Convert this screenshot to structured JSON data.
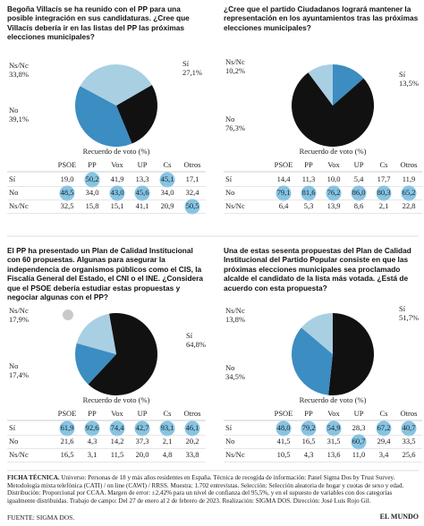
{
  "chart_data": [
    {
      "type": "pie",
      "title": "Begoña Villacís se ha reunido con el PP para una posible integración en sus candidaturas. ¿Cree que Villacís debería ir en las listas del PP las próximas elecciones municipales?",
      "categories": [
        "Sí",
        "No",
        "Ns/Nc"
      ],
      "values": [
        27.1,
        39.1,
        33.8
      ],
      "value_labels": [
        "27,1%",
        "39,1%",
        "33,8%"
      ],
      "colors": [
        "#111111",
        "#3b8dc2",
        "#a9cfe2"
      ]
    },
    {
      "type": "pie",
      "title": "¿Cree que el partido Ciudadanos logrará mantener la representación en los ayuntamientos tras las próximas elecciones municipales?",
      "categories": [
        "Sí",
        "No",
        "Ns/Nc"
      ],
      "values": [
        13.5,
        76.3,
        10.2
      ],
      "value_labels": [
        "13,5%",
        "76,3%",
        "10,2%"
      ],
      "colors": [
        "#3b8dc2",
        "#111111",
        "#a9cfe2"
      ]
    },
    {
      "type": "pie",
      "title": "El PP ha presentado un Plan de Calidad Institucional con 60 propuestas. Algunas para asegurar la independencia de organismos públicos como el CIS, la Fiscalía General del Estado, el CNI o el INE. ¿Considera que el PSOE debería estudiar estas propuestas y negociar algunas con el PP?",
      "categories": [
        "Sí",
        "No",
        "Ns/Nc"
      ],
      "values": [
        64.8,
        17.4,
        17.9
      ],
      "value_labels": [
        "64,8%",
        "17,4%",
        "17,9%"
      ],
      "colors": [
        "#111111",
        "#3b8dc2",
        "#a9cfe2"
      ]
    },
    {
      "type": "pie",
      "title": "Una de estas sesenta propuestas del Plan de Calidad Institucional del Partido Popular consiste en que las próximas elecciones municipales sea proclamado alcalde el candidato de la lista más votada. ¿Está de acuerdo con esta propuesta?",
      "categories": [
        "Sí",
        "No",
        "Ns/Nc"
      ],
      "values": [
        51.7,
        34.5,
        13.8
      ],
      "value_labels": [
        "51,7%",
        "34,5%",
        "13,8%"
      ],
      "colors": [
        "#111111",
        "#3b8dc2",
        "#a9cfe2"
      ]
    }
  ],
  "tables": [
    {
      "caption": "Recuerdo de voto (%)",
      "columns": [
        "PSOE",
        "PP",
        "Vox",
        "UP",
        "Cs",
        "Otros"
      ],
      "rows": [
        {
          "label": "Sí",
          "cells": [
            "19,0",
            "50,2",
            "41,9",
            "13,3",
            "45,1",
            "17,1"
          ],
          "highlight": [
            false,
            true,
            false,
            false,
            true,
            false
          ]
        },
        {
          "label": "No",
          "cells": [
            "48,5",
            "34,0",
            "43,0",
            "45,6",
            "34,0",
            "32,4"
          ],
          "highlight": [
            true,
            false,
            true,
            true,
            false,
            false
          ]
        },
        {
          "label": "Ns/Nc",
          "cells": [
            "32,5",
            "15,8",
            "15,1",
            "41,1",
            "20,9",
            "50,5"
          ],
          "highlight": [
            false,
            false,
            false,
            false,
            false,
            true
          ]
        }
      ]
    },
    {
      "caption": "Recuerdo de voto (%)",
      "columns": [
        "PSOE",
        "PP",
        "Vox",
        "UP",
        "Cs",
        "Otros"
      ],
      "rows": [
        {
          "label": "Sí",
          "cells": [
            "14,4",
            "11,3",
            "10,0",
            "5,4",
            "17,7",
            "11,9"
          ],
          "highlight": [
            false,
            false,
            false,
            false,
            false,
            false
          ]
        },
        {
          "label": "No",
          "cells": [
            "79,1",
            "81,6",
            "76,2",
            "86,0",
            "80,3",
            "65,2"
          ],
          "highlight": [
            true,
            true,
            true,
            true,
            true,
            true
          ]
        },
        {
          "label": "Ns/Nc",
          "cells": [
            "6,4",
            "5,3",
            "13,9",
            "8,6",
            "2,1",
            "22,8"
          ],
          "highlight": [
            false,
            false,
            false,
            false,
            false,
            false
          ]
        }
      ]
    },
    {
      "caption": "Recuerdo de voto (%)",
      "columns": [
        "PSOE",
        "PP",
        "Vox",
        "UP",
        "Cs",
        "Otros"
      ],
      "rows": [
        {
          "label": "Sí",
          "cells": [
            "61,9",
            "92,6",
            "74,4",
            "42,7",
            "93,1",
            "46,1"
          ],
          "highlight": [
            true,
            true,
            true,
            true,
            true,
            true
          ]
        },
        {
          "label": "No",
          "cells": [
            "21,6",
            "4,3",
            "14,2",
            "37,3",
            "2,1",
            "20,2"
          ],
          "highlight": [
            false,
            false,
            false,
            false,
            false,
            false
          ]
        },
        {
          "label": "Ns/Nc",
          "cells": [
            "16,5",
            "3,1",
            "11,5",
            "20,0",
            "4,8",
            "33,8"
          ],
          "highlight": [
            false,
            false,
            false,
            false,
            false,
            false
          ]
        }
      ]
    },
    {
      "caption": "Recuerdo de voto (%)",
      "columns": [
        "PSOE",
        "PP",
        "Vox",
        "UP",
        "Cs",
        "Otros"
      ],
      "rows": [
        {
          "label": "Sí",
          "cells": [
            "48,0",
            "79,2",
            "54,9",
            "28,3",
            "67,2",
            "40,7"
          ],
          "highlight": [
            true,
            true,
            true,
            false,
            true,
            true
          ]
        },
        {
          "label": "No",
          "cells": [
            "41,5",
            "16,5",
            "31,5",
            "60,7",
            "29,4",
            "33,5"
          ],
          "highlight": [
            false,
            false,
            false,
            true,
            false,
            false
          ]
        },
        {
          "label": "Ns/Nc",
          "cells": [
            "10,5",
            "4,3",
            "13,6",
            "11,0",
            "3,4",
            "25,6"
          ],
          "highlight": [
            false,
            false,
            false,
            false,
            false,
            false
          ]
        }
      ]
    }
  ],
  "footer": {
    "heading": "FICHA TÉCNICA.",
    "text": "Universo: Personas de 18 y más años residentes en España. Técnica de recogida de información: Panel Sigma Dos by Trust Survey. Metodología mixta telefónica (CATI) / on line (CAWI) / RRSS. Muestra: 1.702 entrevistas. Selección: Selección aleatoria de hogar y cuotas de sexo y edad. Distribución: Proporcional por CCAA. Margen de error: ±2,42% para un nivel de confianza del 95,5%, y en el supuesto de variables con dos categorías igualmente distribuidas. Trabajo de campo: Del 27 de enero al 2 de febrero de 2023. Realización: SIGMA DOS. Dirección: José Luis Rojo Gil.",
    "source": "FUENTE: SIGMA DOS.",
    "brand": "EL MUNDO"
  }
}
